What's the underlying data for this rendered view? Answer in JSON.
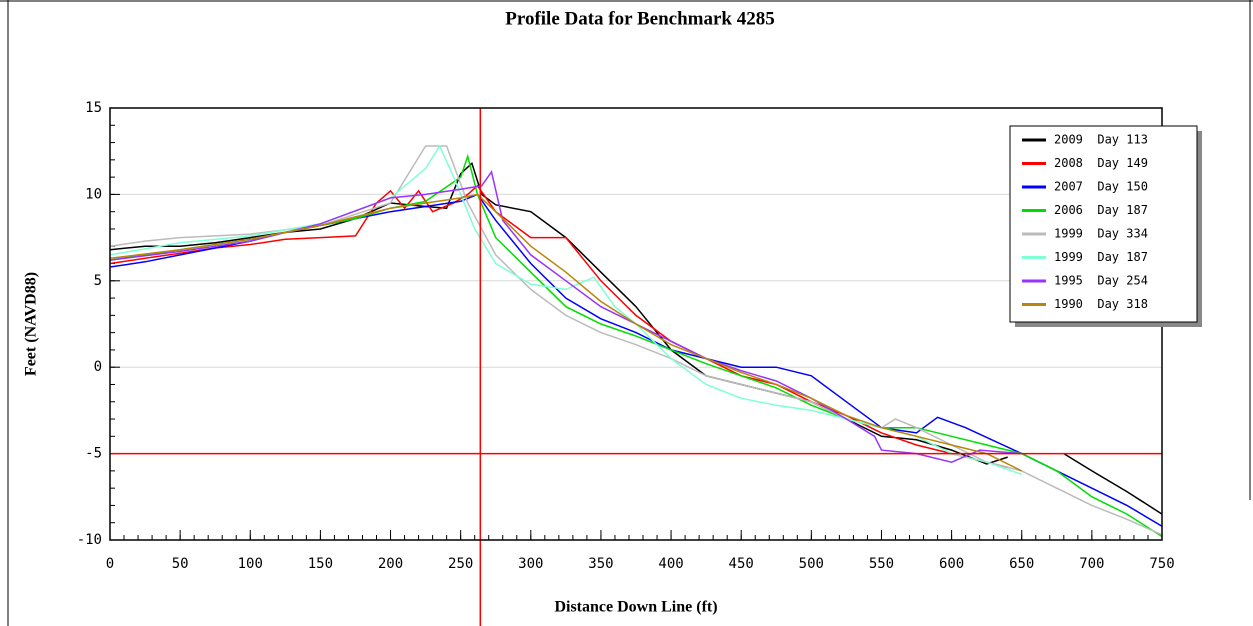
{
  "chart_data": {
    "type": "line",
    "title": "Profile Data for Benchmark 4285",
    "x_label": "Distance Down Line (ft)",
    "y_label": "Feet (NAVD88)",
    "xlim": [
      0,
      750
    ],
    "xticks": [
      0,
      50,
      100,
      150,
      200,
      250,
      300,
      350,
      400,
      450,
      500,
      550,
      600,
      650,
      700,
      750
    ],
    "ylim": [
      -10,
      15
    ],
    "yticks": [
      -10,
      -5,
      0,
      5,
      10,
      15
    ],
    "x_minor_step": 10,
    "y_minor_step": 1,
    "grid": true,
    "legend": "upper right",
    "reference_lines": {
      "x": 264,
      "y": -5,
      "color": "#ff0000"
    },
    "series": [
      {
        "name": "2009  Day 113",
        "color": "#000000",
        "x": [
          0,
          25,
          50,
          75,
          100,
          125,
          150,
          175,
          200,
          225,
          240,
          250,
          258,
          265,
          275,
          300,
          325,
          350,
          375,
          400,
          425,
          450,
          475,
          500,
          525,
          550,
          575,
          600,
          625,
          640,
          660,
          680,
          700,
          725,
          750
        ],
        "values": [
          6.8,
          7.0,
          7.0,
          7.2,
          7.5,
          7.8,
          8.0,
          8.6,
          9.5,
          9.3,
          9.2,
          11.2,
          11.8,
          10.0,
          9.4,
          9.0,
          7.5,
          5.5,
          3.5,
          1.0,
          -0.5,
          -1.0,
          -1.5,
          -2.0,
          -3.0,
          -4.0,
          -4.2,
          -4.8,
          -5.6,
          -5.2,
          null,
          -5.0,
          -6.0,
          -7.2,
          -8.5
        ]
      },
      {
        "name": "2008  Day 149",
        "color": "#ff0000",
        "x": [
          0,
          25,
          50,
          75,
          100,
          125,
          150,
          175,
          190,
          200,
          210,
          220,
          230,
          245,
          255,
          262,
          275,
          300,
          325,
          350,
          375,
          400,
          425,
          450,
          475,
          500,
          525,
          550,
          575,
          600,
          625,
          640
        ],
        "values": [
          6.0,
          6.3,
          6.6,
          6.9,
          7.1,
          7.4,
          7.5,
          7.6,
          9.5,
          10.2,
          9.2,
          10.2,
          9.0,
          9.5,
          10.0,
          10.5,
          9.0,
          7.5,
          7.5,
          5.0,
          3.0,
          1.5,
          0.5,
          -0.5,
          -1.0,
          -2.0,
          -2.8,
          -3.8,
          -4.5,
          -5.0,
          -5.5,
          -5.8
        ]
      },
      {
        "name": "2007  Day 150",
        "color": "#0000ff",
        "x": [
          0,
          25,
          50,
          75,
          100,
          125,
          150,
          175,
          200,
          225,
          250,
          262,
          275,
          300,
          325,
          350,
          375,
          400,
          425,
          450,
          475,
          500,
          525,
          550,
          575,
          590,
          610,
          650,
          675,
          700,
          725,
          750
        ],
        "values": [
          5.8,
          6.1,
          6.5,
          6.9,
          7.3,
          7.8,
          8.2,
          8.6,
          9.0,
          9.3,
          9.6,
          10.0,
          8.5,
          6.0,
          4.0,
          2.8,
          2.0,
          1.0,
          0.5,
          0.0,
          0.0,
          -0.5,
          -2.0,
          -3.5,
          -3.8,
          -2.9,
          -3.5,
          -5.0,
          -6.0,
          -7.0,
          -8.0,
          -9.2
        ]
      },
      {
        "name": "2006  Day 187",
        "color": "#00dd00",
        "x": [
          0,
          25,
          50,
          75,
          100,
          125,
          150,
          175,
          200,
          225,
          250,
          255,
          262,
          275,
          300,
          325,
          350,
          375,
          400,
          425,
          450,
          475,
          500,
          525,
          550,
          575,
          600,
          625,
          650,
          675,
          700,
          725,
          750
        ],
        "values": [
          6.2,
          6.5,
          6.8,
          7.1,
          7.4,
          7.8,
          8.2,
          8.6,
          9.2,
          9.6,
          11.0,
          12.2,
          10.0,
          7.5,
          5.5,
          3.5,
          2.5,
          1.8,
          1.0,
          0.2,
          -0.5,
          -1.2,
          -2.2,
          -3.0,
          -3.5,
          -3.5,
          -4.0,
          -4.5,
          -5.0,
          -6.0,
          -7.5,
          -8.5,
          -9.8
        ]
      },
      {
        "name": "1999  Day 334",
        "color": "#bbbbbb",
        "x": [
          0,
          25,
          50,
          100,
          150,
          200,
          225,
          240,
          255,
          265,
          275,
          300,
          325,
          350,
          375,
          400,
          425,
          450,
          475,
          500,
          525,
          550,
          560,
          575,
          600,
          625,
          650,
          675,
          700,
          725,
          750
        ],
        "values": [
          7.0,
          7.3,
          7.5,
          7.7,
          8.2,
          9.5,
          12.8,
          12.8,
          9.5,
          8.0,
          6.5,
          4.5,
          3.0,
          2.0,
          1.3,
          0.5,
          -0.5,
          -1.0,
          -1.5,
          -2.0,
          -3.0,
          -3.5,
          -3.0,
          -3.5,
          -4.5,
          -5.5,
          -6.0,
          -7.0,
          -8.0,
          -8.8,
          -9.7
        ]
      },
      {
        "name": "1999  Day 187",
        "color": "#7fffd4",
        "x": [
          0,
          50,
          100,
          150,
          200,
          225,
          235,
          245,
          260,
          275,
          300,
          325,
          345,
          360,
          375,
          400,
          425,
          450,
          475,
          500,
          525,
          550,
          575,
          600,
          625,
          650
        ],
        "values": [
          6.5,
          7.2,
          7.6,
          8.3,
          9.8,
          11.5,
          12.8,
          11.0,
          8.0,
          6.0,
          4.8,
          4.5,
          5.2,
          3.5,
          2.5,
          0.5,
          -1.0,
          -1.8,
          -2.2,
          -2.5,
          -3.0,
          -3.5,
          -4.0,
          -5.0,
          -5.5,
          -6.2
        ]
      },
      {
        "name": "1995  Day 254",
        "color": "#9933ff",
        "x": [
          0,
          50,
          100,
          150,
          200,
          225,
          250,
          265,
          272,
          280,
          300,
          325,
          350,
          375,
          400,
          425,
          450,
          475,
          500,
          525,
          545,
          550,
          575,
          600,
          620,
          650
        ],
        "values": [
          6.2,
          6.7,
          7.3,
          8.3,
          9.8,
          10.0,
          10.3,
          10.5,
          11.3,
          8.5,
          6.5,
          5.0,
          3.5,
          2.5,
          1.5,
          0.5,
          -0.2,
          -0.8,
          -1.8,
          -3.0,
          -4.0,
          -4.8,
          -5.0,
          -5.5,
          -4.8,
          -5.0
        ]
      },
      {
        "name": "1990  Day 318",
        "color": "#b8860b",
        "x": [
          0,
          50,
          100,
          150,
          200,
          250,
          262,
          275,
          300,
          325,
          350,
          375,
          400,
          425,
          450,
          475,
          500,
          525,
          550,
          575,
          600,
          625,
          650
        ],
        "values": [
          6.3,
          6.8,
          7.4,
          8.2,
          9.2,
          9.8,
          10.0,
          9.0,
          7.0,
          5.5,
          3.8,
          2.5,
          1.3,
          0.5,
          -0.3,
          -1.0,
          -1.8,
          -2.8,
          -3.5,
          -4.0,
          -4.5,
          -5.0,
          -6.0
        ]
      }
    ]
  }
}
